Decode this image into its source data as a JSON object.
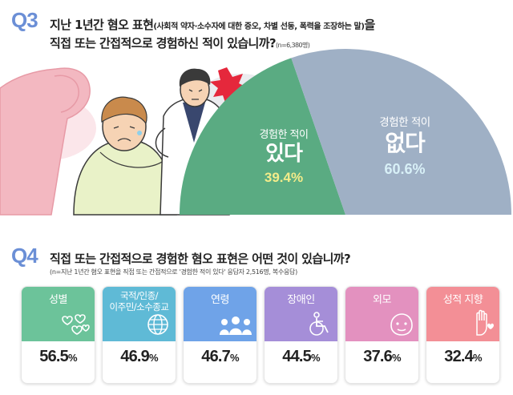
{
  "q3": {
    "label": "Q3",
    "title_line1": "지난 1년간 혐오 표현",
    "title_paren": "(사회적 약자·소수자에 대한 증오, 차별 선동, 폭력을 조장하는 말)",
    "title_suffix": "을",
    "title_line2": "직접 또는 간접적으로 경험하신 적이 있습니까?",
    "sample_note": "(n=6,380명)"
  },
  "q4": {
    "label": "Q4",
    "title": "직접 또는 간접적으로 경험한 혐오 표현은 어떤 것이 있습니까?",
    "note": "(n=지난 1년간 혐오 표현을 직접 또는 간접적으로 '경험한 적이 있다' 응답자 2,516명, 복수응답)"
  },
  "colors": {
    "q_label": "#6b8fd6",
    "yes": "#5aab82",
    "no": "#9fb0c5",
    "yes_pct": "#f3ec8a",
    "no_pct": "#d8f0f7"
  },
  "chart_data": [
    {
      "type": "pie",
      "layout": "half-donut",
      "slices": [
        {
          "label_line1": "경험한 적이",
          "label_line2": "있다",
          "value": 39.4,
          "value_text": "39.4%",
          "color": "#5aab82"
        },
        {
          "label_line1": "경험한 적이",
          "label_line2": "없다",
          "value": 60.6,
          "value_text": "60.6%",
          "color": "#9fb0c5"
        }
      ]
    },
    {
      "type": "bar",
      "layout": "cards",
      "categories": [
        "성별",
        "국적/인종/ 이주민/소수종교",
        "연령",
        "장애인",
        "외모",
        "성적 지향"
      ],
      "category_lines": [
        [
          "성별"
        ],
        [
          "국적/인종/",
          "이주민/소수종교"
        ],
        [
          "연령"
        ],
        [
          "장애인"
        ],
        [
          "외모"
        ],
        [
          "성적 지향"
        ]
      ],
      "values": [
        56.5,
        46.9,
        46.7,
        44.5,
        37.6,
        32.4
      ],
      "value_units": "%",
      "colors": [
        "#6cc39a",
        "#5fbad6",
        "#6fa3e8",
        "#a58ed8",
        "#e391bf",
        "#f38f96"
      ],
      "icons": [
        "hearts-icon",
        "globe-icon",
        "people-icon",
        "wheelchair-icon",
        "face-icon",
        "hand-heart-icon"
      ]
    }
  ]
}
